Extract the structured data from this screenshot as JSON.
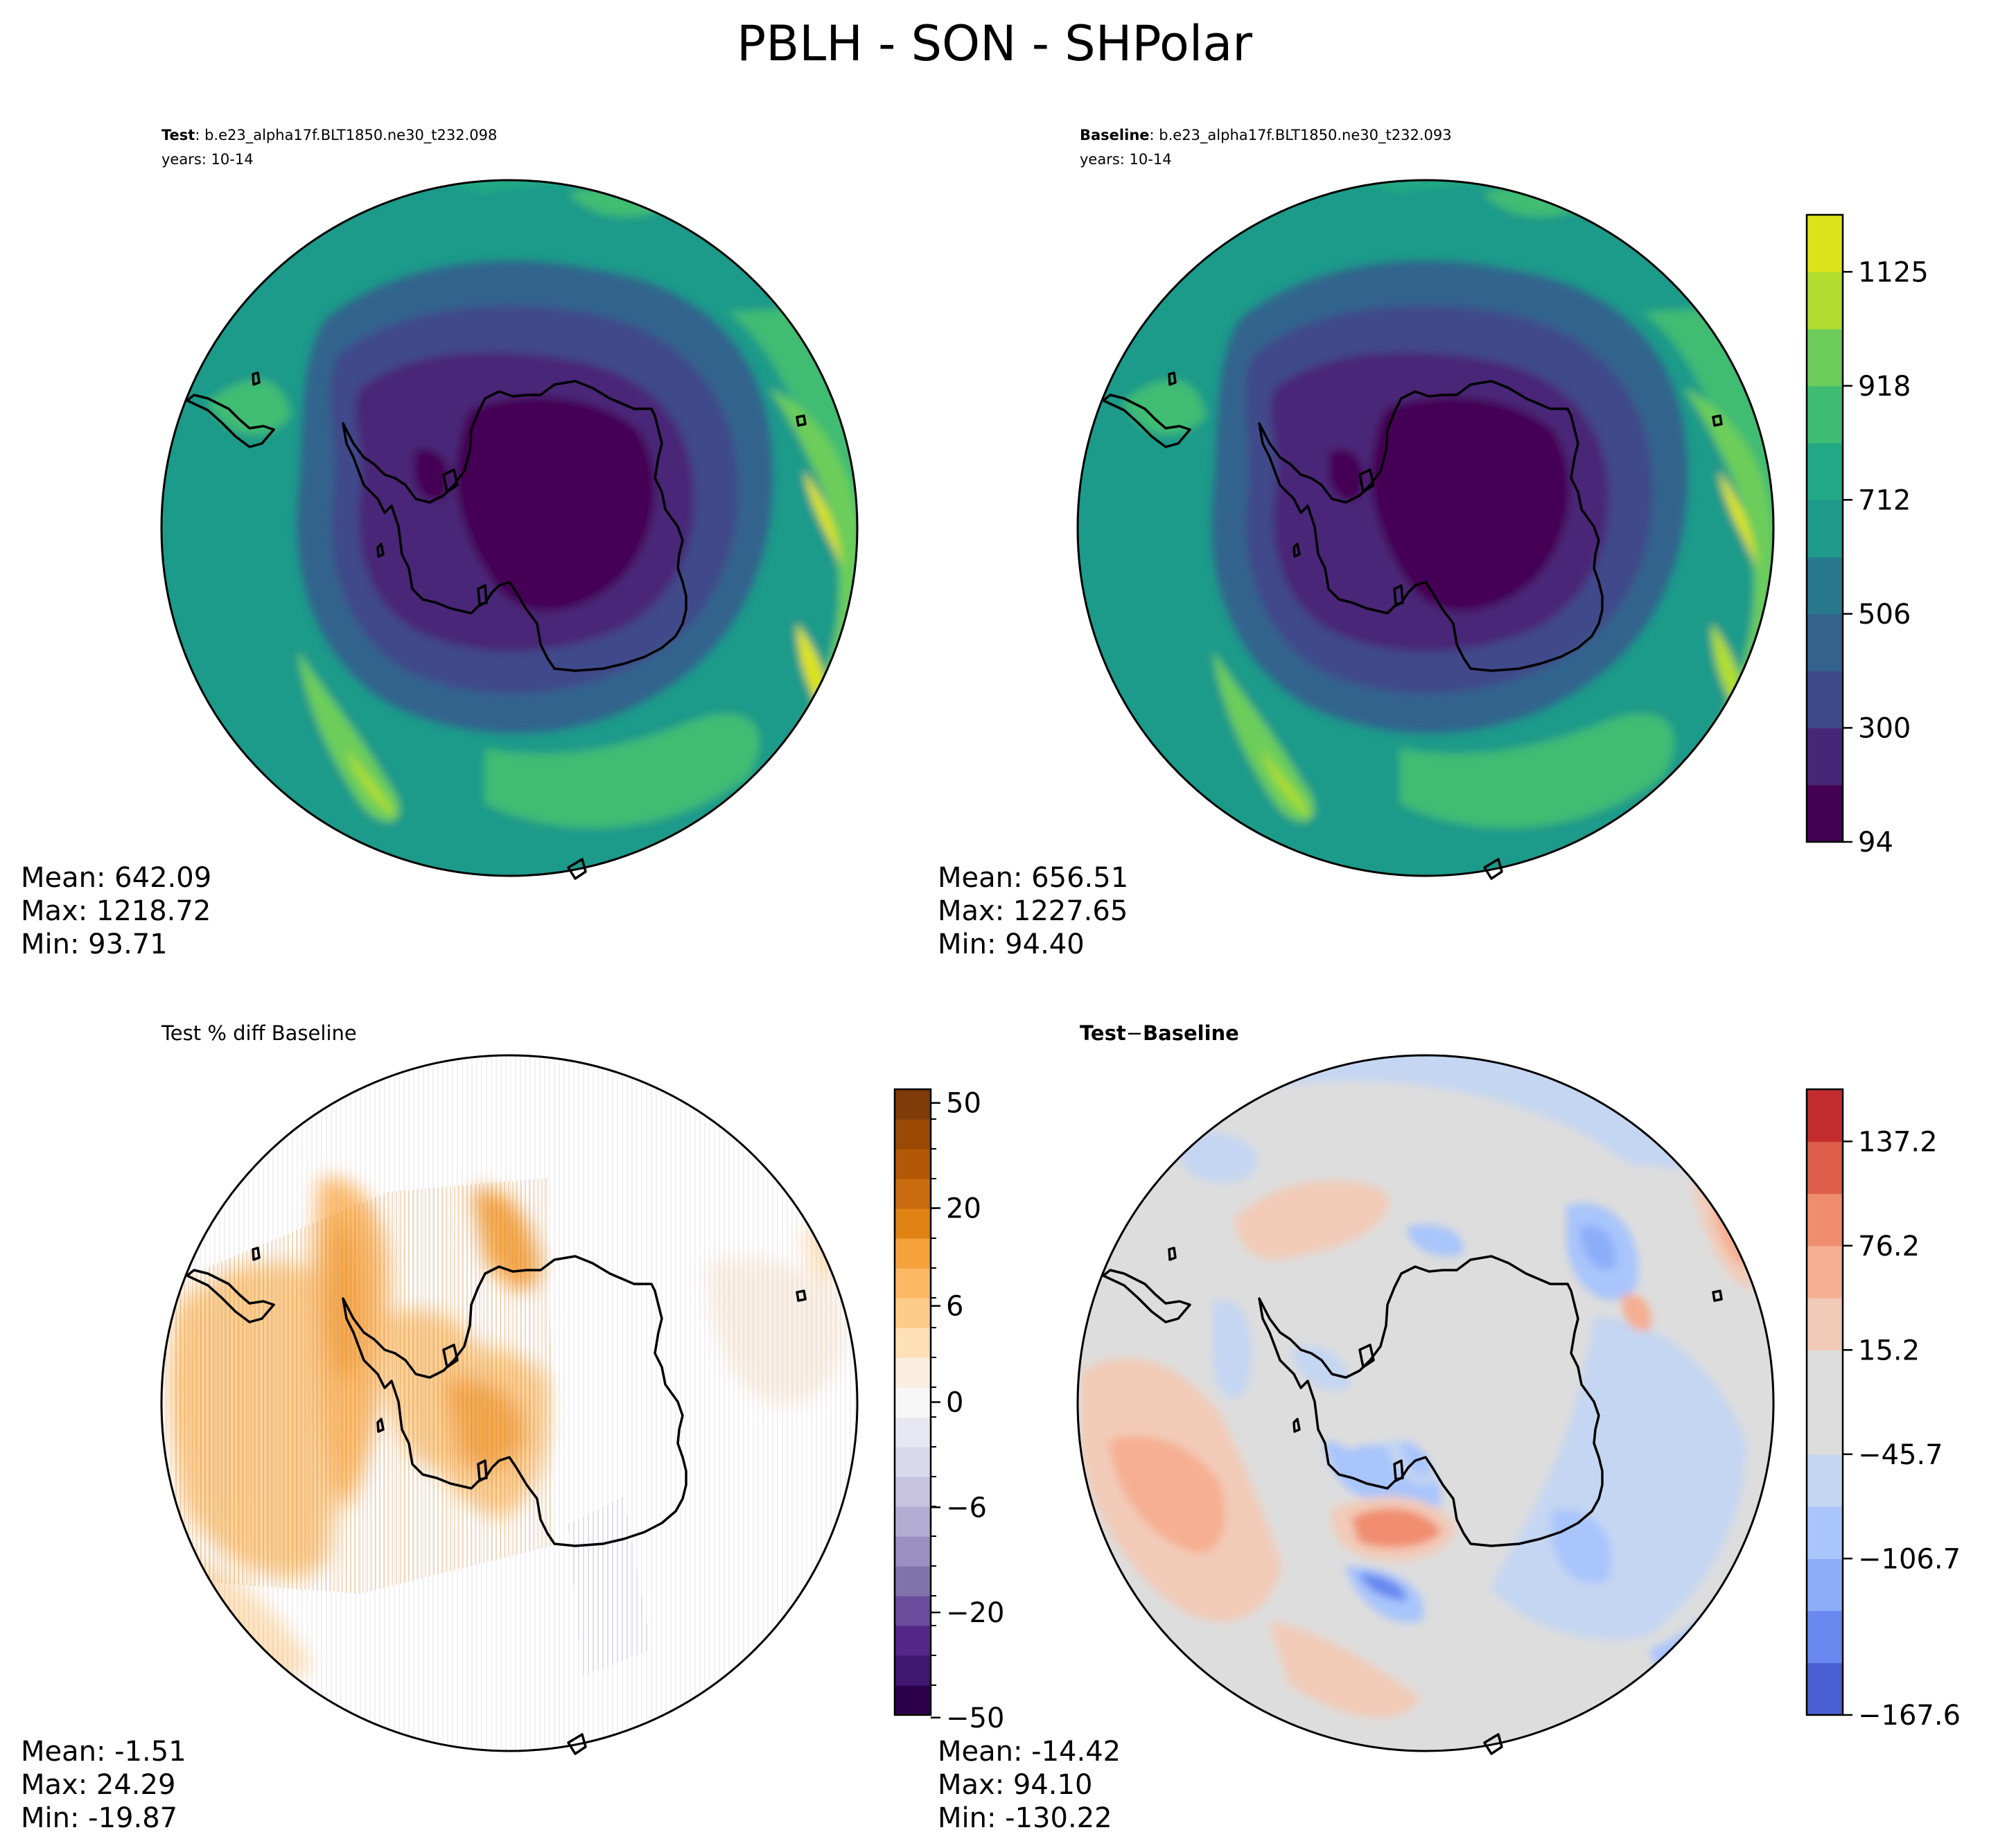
{
  "figure": {
    "title": "PBLH - SON - SHPolar"
  },
  "panels": {
    "test": {
      "label": "Test",
      "case": ": b.e23_alpha17f.BLT1850.ne30_t232.098",
      "years": "years: 10-14",
      "stats": {
        "mean": "Mean: 642.09",
        "max": "Max: 1218.72",
        "min": "Min: 93.71"
      }
    },
    "baseline": {
      "label": "Baseline",
      "case": ": b.e23_alpha17f.BLT1850.ne30_t232.093",
      "years": "years: 10-14",
      "stats": {
        "mean": "Mean: 656.51",
        "max": "Max: 1227.65",
        "min": "Min: 94.40"
      }
    },
    "pct_diff": {
      "title": "Test % diff Baseline",
      "stats": {
        "mean": "Mean: -1.51",
        "max": "Max: 24.29",
        "min": "Min: -19.87"
      }
    },
    "diff": {
      "title_a": "Test",
      "title_op": "−",
      "title_b": "Baseline",
      "stats": {
        "mean": "Mean: -14.42",
        "max": "Max: 94.10",
        "min": "Min: -130.22"
      }
    }
  },
  "chart_data": [
    {
      "type": "heatmap",
      "name_hint": "test field",
      "projection": "south-polar stereographic",
      "colormap": "viridis",
      "stats": {
        "mean": 642.09,
        "max": 1218.72,
        "min": 93.71
      }
    },
    {
      "type": "heatmap",
      "name_hint": "baseline field",
      "projection": "south-polar stereographic",
      "colormap": "viridis",
      "stats": {
        "mean": 656.51,
        "max": 1227.65,
        "min": 94.4
      },
      "colorbar": {
        "ticks": [
          "94",
          "300",
          "506",
          "712",
          "918",
          "1125"
        ],
        "range": [
          94,
          1228
        ],
        "colors": [
          "#440154",
          "#482677",
          "#3f4a8a",
          "#33638d",
          "#28798e",
          "#1f9a8a",
          "#22a884",
          "#3fbc73",
          "#6ccd5a",
          "#b0dd2f",
          "#dde318"
        ]
      }
    },
    {
      "type": "heatmap",
      "name_hint": "percent difference",
      "projection": "south-polar stereographic",
      "colormap": "PuOr_r",
      "stats": {
        "mean": -1.51,
        "max": 24.29,
        "min": -19.87
      },
      "colorbar": {
        "ticks": [
          "50",
          "20",
          "6",
          "0",
          "−6",
          "−20",
          "−50"
        ],
        "tick_positions": [
          0.886,
          0.686,
          0.5,
          0.317,
          0.117,
          -0.083,
          -0.283
        ],
        "colors": [
          "#2d004b",
          "#3f1670",
          "#542788",
          "#6a4b9c",
          "#8073ac",
          "#998fc0",
          "#b2abd2",
          "#c8c3e0",
          "#d8daeb",
          "#e7e7f1",
          "#f7f7f7",
          "#f9eee0",
          "#fee0b6",
          "#fdcc8a",
          "#fdb863",
          "#f5a23c",
          "#e08214",
          "#c96b0e",
          "#b35806",
          "#9a4a05",
          "#7f3b08"
        ]
      }
    },
    {
      "type": "heatmap",
      "name_hint": "absolute difference",
      "projection": "south-polar stereographic",
      "colormap": "coolwarm",
      "stats": {
        "mean": -14.42,
        "max": 94.1,
        "min": -130.22
      },
      "colorbar": {
        "ticks": [
          "137.2",
          "76.2",
          "15.2",
          "−45.7",
          "−106.7",
          "−167.6"
        ],
        "range": [
          -167.6,
          167.6
        ],
        "colors": [
          "#4a5fd1",
          "#6888ef",
          "#8caef9",
          "#a9c5fc",
          "#c5d6f2",
          "#dddddd",
          "#dddddd",
          "#f2cbb8",
          "#f6af92",
          "#f18d6f",
          "#dc5e4b",
          "#c32d2f"
        ]
      }
    }
  ]
}
